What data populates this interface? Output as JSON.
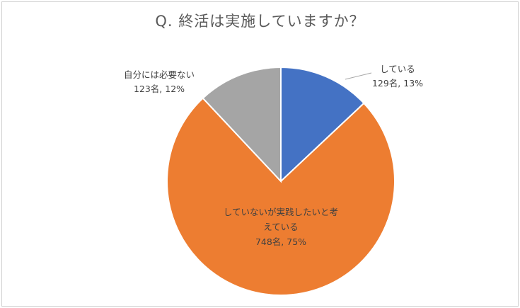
{
  "chart_data": {
    "type": "pie",
    "title": "Q. 終活は実施していますか？",
    "slices": [
      {
        "label": "している",
        "count_text": "129名, 13%",
        "value": 13,
        "color": "#4472c4"
      },
      {
        "label": "していないが実践したいと考えている",
        "label_line1": "していないが実践したいと考",
        "label_line2": "えている",
        "count_text": "748名, 75%",
        "value": 75,
        "color": "#ed7d31"
      },
      {
        "label": "自分には必要ない",
        "count_text": "123名, 12%",
        "value": 12,
        "color": "#a5a5a5"
      }
    ]
  }
}
